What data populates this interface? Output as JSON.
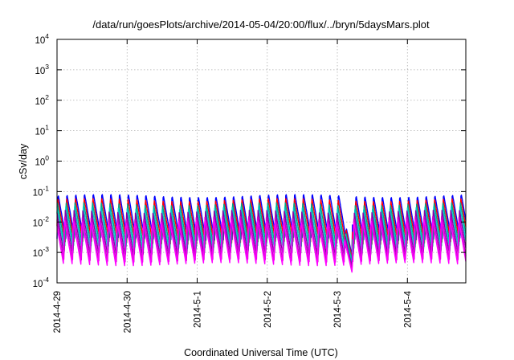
{
  "chart_data": {
    "type": "line",
    "title": "/data/run/goesPlots/archive/2014-05-04/20:00/flux/../bryn/5daysMars.plot",
    "xlabel": "Coordinated Universal Time (UTC)",
    "ylabel": "cSv/day",
    "y_scale": "log",
    "ylim": [
      0.0001,
      10000
    ],
    "y_ticks": [
      {
        "base": "10",
        "exp": "-4",
        "value": 0.0001
      },
      {
        "base": "10",
        "exp": "-3",
        "value": 0.001
      },
      {
        "base": "10",
        "exp": "-2",
        "value": 0.01
      },
      {
        "base": "10",
        "exp": "-1",
        "value": 0.1
      },
      {
        "base": "10",
        "exp": "0",
        "value": 1
      },
      {
        "base": "10",
        "exp": "1",
        "value": 10
      },
      {
        "base": "10",
        "exp": "2",
        "value": 100
      },
      {
        "base": "10",
        "exp": "3",
        "value": 1000
      },
      {
        "base": "10",
        "exp": "4",
        "value": 10000
      }
    ],
    "xlim": [
      "2014-04-29T00:00",
      "2014-05-04T20:00"
    ],
    "x_ticks": [
      "2014-4-29",
      "2014-4-30",
      "2014-5-1",
      "2014-5-2",
      "2014-5-3",
      "2014-5-4"
    ],
    "grid": true,
    "pattern": {
      "period_hours": 3,
      "peak_values": [
        0.085,
        0.06,
        0.042,
        0.03,
        0.022,
        0.016,
        0.012
      ],
      "trough_values": [
        0.0028,
        0.002,
        0.0014,
        0.001,
        0.0007,
        0.0005,
        0.0004
      ],
      "dropout": {
        "start": "2014-05-03T00:00",
        "end": "2014-05-03T05:00",
        "min_value": 0.0001
      }
    },
    "series": [
      {
        "color": "#0000ff",
        "values": "sawtooth pattern"
      },
      {
        "color": "#ff0000",
        "values": "sawtooth pattern"
      },
      {
        "color": "#00aa88",
        "values": "sawtooth pattern"
      },
      {
        "color": "#00c8c8",
        "values": "sawtooth pattern"
      },
      {
        "color": "#8800aa",
        "values": "sawtooth pattern"
      },
      {
        "color": "#cc00cc",
        "values": "sawtooth pattern"
      },
      {
        "color": "#ff00ff",
        "values": "sawtooth pattern"
      }
    ]
  }
}
